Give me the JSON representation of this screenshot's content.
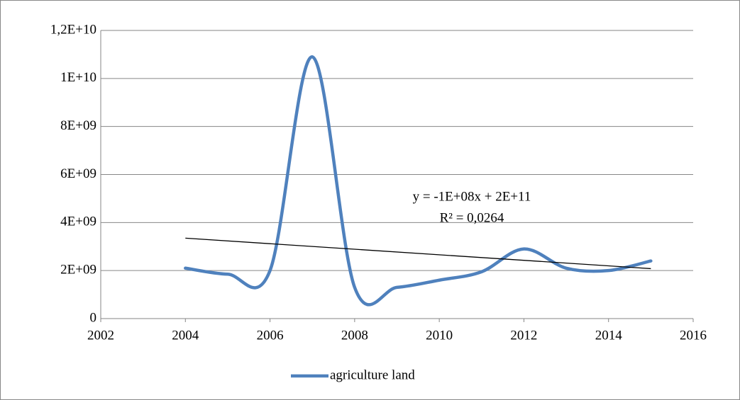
{
  "chart_data": {
    "type": "line",
    "x": [
      2004,
      2005,
      2006,
      2007,
      2008,
      2009,
      2010,
      2011,
      2012,
      2013,
      2014,
      2015
    ],
    "series": [
      {
        "name": "agriculture land",
        "color": "#4f81bd",
        "values": [
          2100000000,
          1850000000,
          2000000000,
          10900000000,
          1300000000,
          1300000000,
          1600000000,
          1950000000,
          2900000000,
          2100000000,
          2000000000,
          2400000000
        ]
      }
    ],
    "trendline": {
      "x": [
        2004,
        2015
      ],
      "values": [
        3350000000,
        2080000000
      ],
      "color": "#000000"
    },
    "annotations": [
      "y = -1E+08x + 2E+11",
      "R² = 0,0264"
    ],
    "xlim": [
      2002,
      2016
    ],
    "xticks": [
      2002,
      2004,
      2006,
      2008,
      2010,
      2012,
      2014,
      2016
    ],
    "ylim": [
      0,
      12000000000
    ],
    "yticks": [
      0,
      {
        "value": 2000000000,
        "label": "2E+09"
      },
      {
        "value": 4000000000,
        "label": "4E+09"
      },
      {
        "value": 6000000000,
        "label": "6E+09"
      },
      {
        "value": 8000000000,
        "label": "8E+09"
      },
      {
        "value": 10000000000,
        "label": "1E+10"
      },
      {
        "value": 12000000000,
        "label": "1,2E+10"
      }
    ],
    "grid": true,
    "smooth": true,
    "legend": "bottom"
  }
}
